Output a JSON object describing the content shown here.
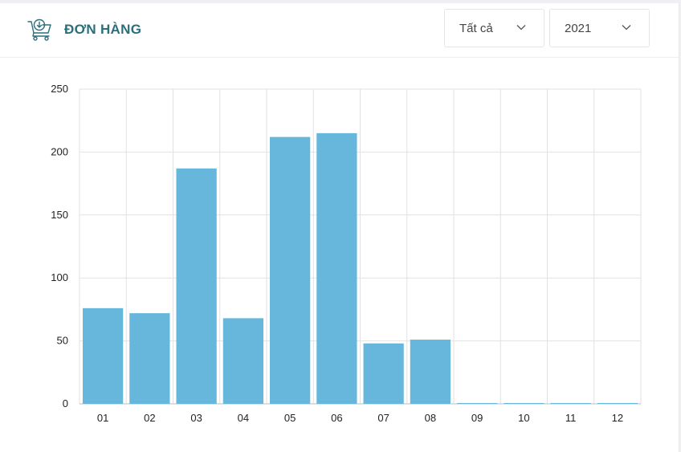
{
  "header": {
    "title": "ĐƠN HÀNG",
    "icon": "cart-download-icon"
  },
  "filters": {
    "type": {
      "selected": "Tất cả"
    },
    "year": {
      "selected": "2021"
    }
  },
  "colors": {
    "bar": "#67b7dc",
    "title": "#2a6f7c",
    "grid": "#e2e2e2"
  },
  "chart_data": {
    "type": "bar",
    "categories": [
      "01",
      "02",
      "03",
      "04",
      "05",
      "06",
      "07",
      "08",
      "09",
      "10",
      "11",
      "12"
    ],
    "values": [
      76,
      72,
      187,
      68,
      212,
      215,
      48,
      51,
      0,
      0,
      0,
      0
    ],
    "ylim": [
      0,
      250
    ],
    "yticks": [
      0,
      50,
      100,
      150,
      200,
      250
    ],
    "grid": true,
    "legend": "none"
  }
}
